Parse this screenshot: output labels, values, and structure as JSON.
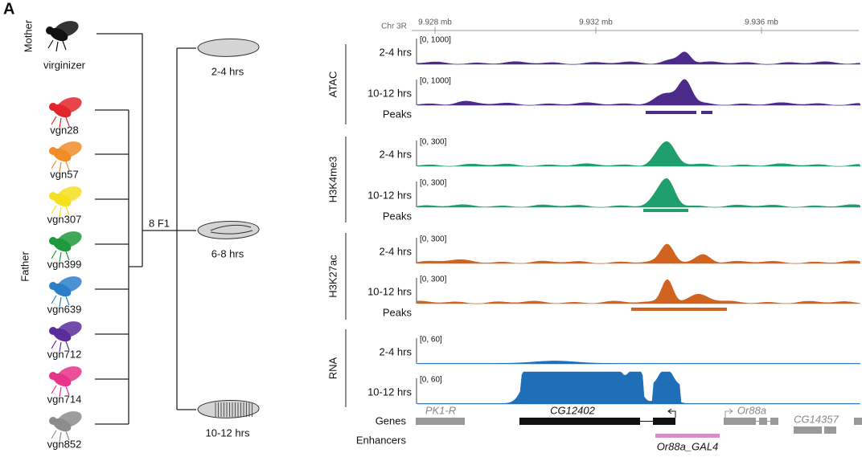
{
  "panel_label": "A",
  "cross": {
    "mother_label": "Mother",
    "father_label": "Father",
    "mother": "virginizer",
    "fathers": [
      {
        "name": "vgn28",
        "color": "#e3242b"
      },
      {
        "name": "vgn57",
        "color": "#f28c28"
      },
      {
        "name": "vgn307",
        "color": "#f5e020"
      },
      {
        "name": "vgn399",
        "color": "#1e9a3c"
      },
      {
        "name": "vgn639",
        "color": "#2a7fc9"
      },
      {
        "name": "vgn712",
        "color": "#5b2d9c"
      },
      {
        "name": "vgn714",
        "color": "#e8338a"
      },
      {
        "name": "vgn852",
        "color": "#8c8c8c"
      }
    ],
    "f1_label": "8 F1",
    "stages": [
      "2-4 hrs",
      "6-8 hrs",
      "10-12 hrs"
    ]
  },
  "browser": {
    "chromosome": "Chr 3R",
    "positions": [
      "9.928 mb",
      "9.932 mb",
      "9.936 mb"
    ],
    "assays": [
      {
        "name": "ATAC",
        "color": "#4b2a8a",
        "tracks": [
          {
            "label": "2-4 hrs",
            "range": "[0, 1000]"
          },
          {
            "label": "10-12 hrs",
            "range": "[0, 1000]"
          }
        ],
        "peaks": "Peaks"
      },
      {
        "name": "H3K4me3",
        "color": "#1f9e6e",
        "tracks": [
          {
            "label": "2-4 hrs",
            "range": "[0, 300]"
          },
          {
            "label": "10-12 hrs",
            "range": "[0, 300]"
          }
        ],
        "peaks": "Peaks"
      },
      {
        "name": "H3K27ac",
        "color": "#d2621f",
        "tracks": [
          {
            "label": "2-4 hrs",
            "range": "[0, 300]"
          },
          {
            "label": "10-12 hrs",
            "range": "[0, 300]"
          }
        ],
        "peaks": "Peaks"
      },
      {
        "name": "RNA",
        "color": "#1f6fb8",
        "tracks": [
          {
            "label": "2-4 hrs",
            "range": "[0, 60]"
          },
          {
            "label": "10-12 hrs",
            "range": "[0, 60]"
          }
        ]
      }
    ],
    "genes_label": "Genes",
    "enhancers_label": "Enhancers",
    "genes": [
      "PK1-R",
      "CG12402",
      "Or88a",
      "CG14357"
    ],
    "enhancer": "Or88a_GAL4"
  }
}
